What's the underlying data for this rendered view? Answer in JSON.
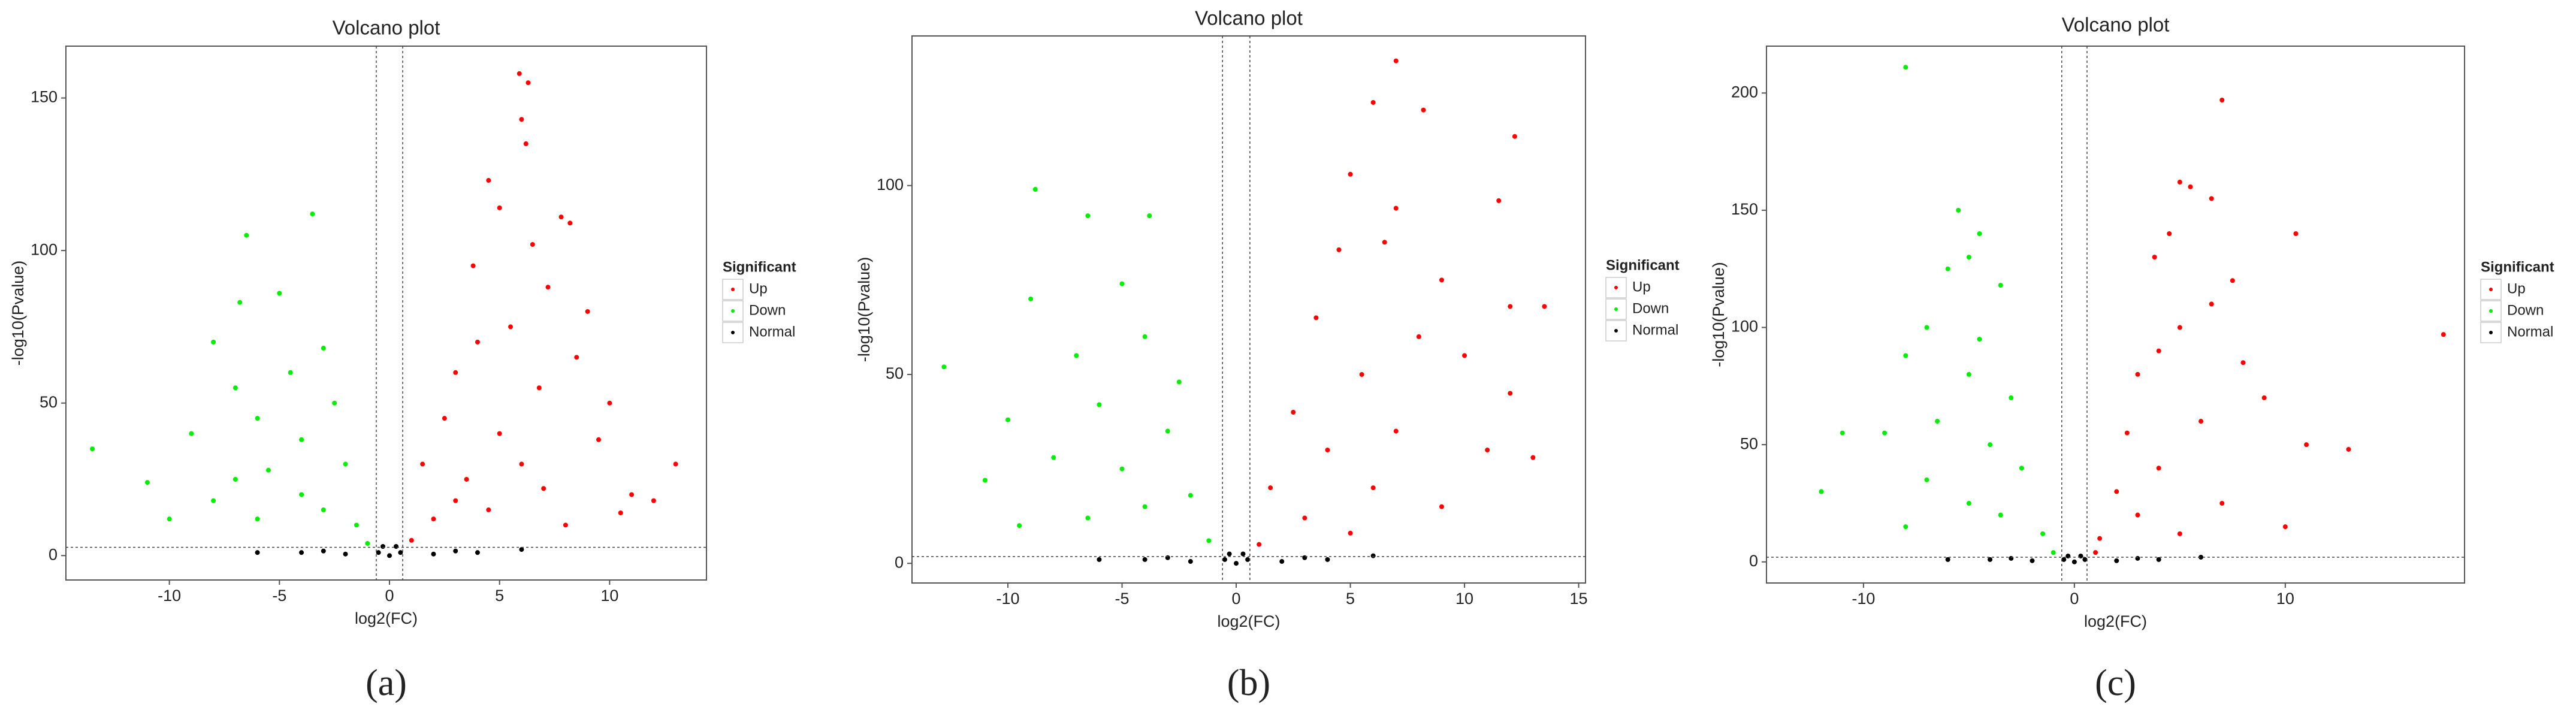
{
  "chart_data": [
    {
      "type": "scatter",
      "title": "Volcano plot",
      "x_label": "log2(FC)",
      "y_label": "-log10(Pvalue)",
      "legend_title": "Significant",
      "panel_label": "(a)",
      "xlim": [
        -14.7,
        14.4
      ],
      "ylim": [
        -8,
        167
      ],
      "xticks": [
        -10,
        -5,
        0,
        5,
        10
      ],
      "yticks": [
        0,
        50,
        100,
        150
      ],
      "x_thresholds": [
        -0.6,
        0.6
      ],
      "y_threshold": 2.7,
      "series": [
        {
          "name": "Up",
          "color": "#ff0000",
          "x": [
            5.9,
            6.3,
            6,
            6.2,
            4.5,
            5,
            7.8,
            8.2,
            6.5,
            3.8,
            7.2,
            9,
            5.5,
            4,
            8.5,
            3,
            6.8,
            10,
            2.5,
            5,
            9.5,
            1.5,
            3.5,
            7,
            11,
            12,
            13,
            2,
            4.5,
            1,
            8,
            10.5,
            6,
            3
          ],
          "values": [
            158,
            155,
            143,
            135,
            123,
            114,
            111,
            109,
            102,
            95,
            88,
            80,
            75,
            70,
            65,
            60,
            55,
            50,
            45,
            40,
            38,
            30,
            25,
            22,
            20,
            18,
            30,
            12,
            15,
            5,
            10,
            14,
            30,
            18
          ]
        },
        {
          "name": "Down",
          "color": "#00ee00",
          "x": [
            -6.5,
            -3.5,
            -6.8,
            -5,
            -8,
            -3,
            -4.5,
            -7,
            -2.5,
            -6,
            -9,
            -4,
            -2,
            -5.5,
            -11,
            -13.5,
            -8,
            -3,
            -1.5,
            -6,
            -10,
            -1,
            -4,
            -7
          ],
          "values": [
            105,
            112,
            83,
            86,
            70,
            68,
            60,
            55,
            50,
            45,
            40,
            38,
            30,
            28,
            24,
            35,
            18,
            15,
            10,
            12,
            12,
            4,
            20,
            25
          ]
        },
        {
          "name": "Normal",
          "color": "#000000",
          "x": [
            0,
            -0.5,
            0.5,
            -2,
            2,
            -4,
            4,
            0.3,
            -0.3,
            3,
            -3,
            6,
            -6
          ],
          "values": [
            0,
            1,
            1,
            0.5,
            0.5,
            1,
            1,
            3,
            3,
            1.5,
            1.5,
            2,
            1
          ]
        }
      ]
    },
    {
      "type": "scatter",
      "title": "Volcano plot",
      "x_label": "log2(FC)",
      "y_label": "-log10(Pvalue)",
      "legend_title": "Significant",
      "panel_label": "(b)",
      "xlim": [
        -14.2,
        15.3
      ],
      "ylim": [
        -5.2,
        139.6
      ],
      "xticks": [
        -10,
        -5,
        0,
        5,
        10,
        15
      ],
      "yticks": [
        0,
        50,
        100
      ],
      "x_thresholds": [
        -0.6,
        0.6
      ],
      "y_threshold": 1.8,
      "series": [
        {
          "name": "Up",
          "color": "#ff0000",
          "x": [
            7,
            12.2,
            8.2,
            6,
            7,
            11.5,
            5,
            6.5,
            4.5,
            13.5,
            12,
            9,
            3.5,
            8,
            10,
            5.5,
            12,
            2.5,
            7,
            4,
            11,
            1.5,
            6,
            3,
            9,
            13,
            1,
            5
          ],
          "values": [
            133,
            113,
            120,
            122,
            94,
            96,
            103,
            85,
            83,
            68,
            68,
            75,
            65,
            60,
            55,
            50,
            45,
            40,
            35,
            30,
            30,
            20,
            20,
            12,
            15,
            28,
            5,
            8
          ]
        },
        {
          "name": "Down",
          "color": "#00ee00",
          "x": [
            -8.8,
            -6.5,
            -3.8,
            -5,
            -9,
            -4,
            -7,
            -12.8,
            -2.5,
            -6,
            -10,
            -3,
            -8,
            -5,
            -11,
            -2,
            -6.5,
            -4,
            -1.2,
            -9.5
          ],
          "values": [
            99,
            92,
            92,
            74,
            70,
            60,
            55,
            52,
            48,
            42,
            38,
            35,
            28,
            25,
            22,
            18,
            12,
            15,
            6,
            10
          ]
        },
        {
          "name": "Normal",
          "color": "#000000",
          "x": [
            0,
            -0.5,
            0.5,
            -2,
            2,
            -4,
            4,
            0.3,
            -0.3,
            3,
            -3,
            6,
            -6
          ],
          "values": [
            0,
            1,
            1,
            0.5,
            0.5,
            1,
            1,
            2.5,
            2.5,
            1.5,
            1.5,
            2,
            1
          ]
        }
      ]
    },
    {
      "type": "scatter",
      "title": "Volcano plot",
      "x_label": "log2(FC)",
      "y_label": "-log10(Pvalue)",
      "legend_title": "Significant",
      "panel_label": "(c)",
      "xlim": [
        -14.6,
        18.5
      ],
      "ylim": [
        -9,
        220
      ],
      "xticks": [
        -10,
        0,
        10
      ],
      "yticks": [
        0,
        50,
        100,
        150,
        200
      ],
      "x_thresholds": [
        -0.6,
        0.6
      ],
      "y_threshold": 2,
      "series": [
        {
          "name": "Up",
          "color": "#ff0000",
          "x": [
            5,
            7,
            5.5,
            6.5,
            4.5,
            3.8,
            10.5,
            7.5,
            17.5,
            6.5,
            5,
            4,
            8,
            3,
            9,
            6,
            2.5,
            11,
            13,
            4,
            2,
            7,
            3,
            10,
            1.2,
            5,
            1
          ],
          "values": [
            162,
            197,
            160,
            155,
            140,
            130,
            140,
            120,
            97,
            110,
            100,
            90,
            85,
            80,
            70,
            60,
            55,
            50,
            48,
            40,
            30,
            25,
            20,
            15,
            10,
            12,
            4
          ]
        },
        {
          "name": "Down",
          "color": "#00ee00",
          "x": [
            -8,
            -5.5,
            -4.5,
            -5,
            -6,
            -3.5,
            -7,
            -4.5,
            -8,
            -5,
            -3,
            -6.5,
            -9,
            -4,
            -11,
            -2.5,
            -7,
            -5,
            -12,
            -3.5,
            -1.5,
            -8,
            -1
          ],
          "values": [
            211,
            150,
            140,
            130,
            125,
            118,
            100,
            95,
            88,
            80,
            70,
            60,
            55,
            50,
            55,
            40,
            35,
            25,
            30,
            20,
            12,
            15,
            4
          ]
        },
        {
          "name": "Normal",
          "color": "#000000",
          "x": [
            0,
            -0.5,
            0.5,
            -2,
            2,
            -4,
            4,
            0.3,
            -0.3,
            3,
            -3,
            6,
            -6
          ],
          "values": [
            0,
            1,
            1,
            0.5,
            0.5,
            1,
            1,
            2.5,
            2.5,
            1.5,
            1.5,
            2,
            1
          ]
        }
      ]
    }
  ]
}
